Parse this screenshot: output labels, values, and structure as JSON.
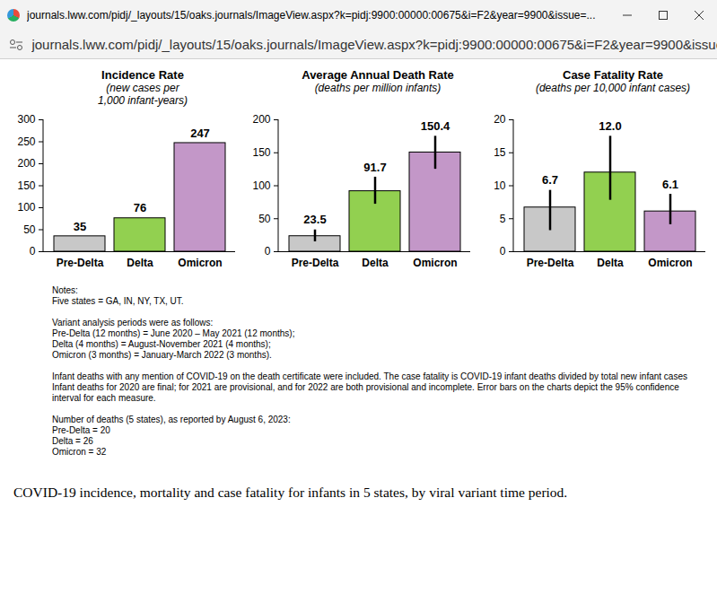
{
  "window": {
    "title": "journals.lww.com/pidj/_layouts/15/oaks.journals/ImageView.aspx?k=pidj:9900:00000:00675&i=F2&year=9900&issue=...",
    "url": "journals.lww.com/pidj/_layouts/15/oaks.journals/ImageView.aspx?k=pidj:9900:00000:00675&i=F2&year=9900&issue=..."
  },
  "chart_data": [
    {
      "type": "bar",
      "title": "Incidence Rate",
      "subtitle": "(new cases per\n1,000 infant-years)",
      "categories": [
        "Pre-Delta",
        "Delta",
        "Omicron"
      ],
      "values": [
        35,
        76,
        247
      ],
      "colors": [
        "#c8c8c8",
        "#92d050",
        "#c397c8"
      ],
      "ylim": [
        0,
        300
      ],
      "yticks": [
        0,
        50,
        100,
        150,
        200,
        250,
        300
      ],
      "grid": false,
      "data_labels": true
    },
    {
      "type": "bar",
      "title": "Average Annual Death Rate",
      "subtitle": "(deaths per million infants)",
      "categories": [
        "Pre-Delta",
        "Delta",
        "Omicron"
      ],
      "values": [
        23.5,
        91.7,
        150.4
      ],
      "error_low": [
        15,
        72,
        125
      ],
      "error_high": [
        33,
        113,
        175
      ],
      "colors": [
        "#c8c8c8",
        "#92d050",
        "#c397c8"
      ],
      "ylim": [
        0,
        200
      ],
      "yticks": [
        0,
        50,
        100,
        150,
        200
      ],
      "grid": false,
      "data_labels": true
    },
    {
      "type": "bar",
      "title": "Case Fatality Rate",
      "subtitle": "(deaths per 10,000 infant cases)",
      "categories": [
        "Pre-Delta",
        "Delta",
        "Omicron"
      ],
      "values": [
        6.7,
        12.0,
        6.1
      ],
      "value_labels": [
        "6.7",
        "12.0",
        "6.1"
      ],
      "error_low": [
        3.2,
        7.8,
        4.1
      ],
      "error_high": [
        9.3,
        17.5,
        8.7
      ],
      "colors": [
        "#c8c8c8",
        "#92d050",
        "#c397c8"
      ],
      "ylim": [
        0,
        20
      ],
      "yticks": [
        0,
        5,
        10,
        15,
        20
      ],
      "grid": false,
      "data_labels": true
    }
  ],
  "notes": [
    "Notes:\nFive states = GA, IN, NY, TX, UT.",
    "Variant analysis periods were as follows:\nPre-Delta (12 months) = June 2020 – May 2021 (12 months);\nDelta (4 months) = August-November 2021 (4 months);\nOmicron (3 months) = January-March 2022 (3 months).",
    "Infant deaths with any mention of COVID-19 on the death certificate were included. The case fatality is COVID-19 infant deaths divided by total new infant cases Infant deaths for 2020 are final; for 2021 are provisional, and for 2022 are both provisional and incomplete.  Error bars on the charts depict the 95% confidence interval for each measure.",
    "Number of deaths (5 states), as reported by August 6, 2023:\nPre-Delta = 20\nDelta = 26\nOmicron = 32"
  ],
  "caption": "COVID-19 incidence, mortality and case fatality for infants in 5 states, by viral variant time period."
}
